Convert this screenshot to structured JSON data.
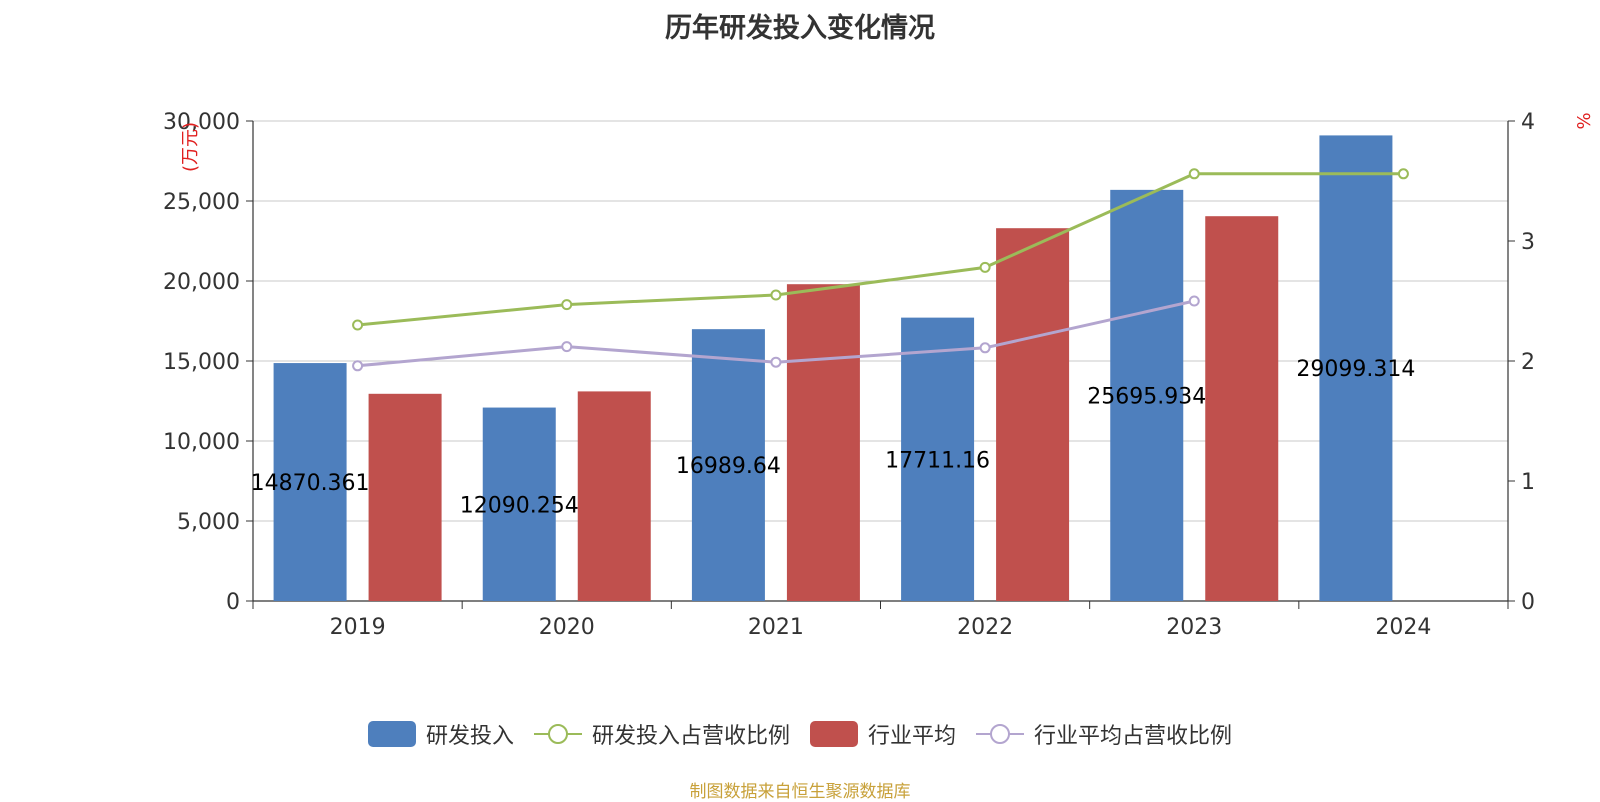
{
  "title": "历年研发投入变化情况",
  "source": "制图数据来自恒生聚源数据库",
  "chart_data": {
    "type": "bar",
    "categories": [
      "2019",
      "2020",
      "2021",
      "2022",
      "2023",
      "2024"
    ],
    "y_left": {
      "label": "(万元)",
      "min": 0,
      "max": 30000,
      "ticks": [
        "0",
        "5,000",
        "10,000",
        "15,000",
        "20,000",
        "25,000",
        "30,000"
      ]
    },
    "y_right": {
      "label": "%",
      "min": 0,
      "max": 4,
      "ticks": [
        "0",
        "1",
        "2",
        "3",
        "4"
      ]
    },
    "grid": true,
    "legend_position": "bottom",
    "series": [
      {
        "name": "研发投入",
        "type": "bar",
        "axis": "left",
        "color": "#4e7fbd",
        "values": [
          14870.361,
          12090.254,
          16989.64,
          17711.16,
          25695.934,
          29099.314
        ],
        "labels": [
          "14870.361",
          "12090.254",
          "16989.64",
          "17711.16",
          "25695.934",
          "29099.314"
        ]
      },
      {
        "name": "研发投入占营收比例",
        "type": "line",
        "axis": "right",
        "color": "#9bbb59",
        "values": [
          2.3,
          2.47,
          2.55,
          2.78,
          3.56,
          3.56
        ]
      },
      {
        "name": "行业平均",
        "type": "bar",
        "axis": "left",
        "color": "#c0504d",
        "values": [
          12950,
          13100,
          19800,
          23300,
          24050,
          null
        ]
      },
      {
        "name": "行业平均占营收比例",
        "type": "line",
        "axis": "right",
        "color": "#b3a5cf",
        "values": [
          1.96,
          2.12,
          1.99,
          2.11,
          2.5,
          null
        ]
      }
    ]
  }
}
